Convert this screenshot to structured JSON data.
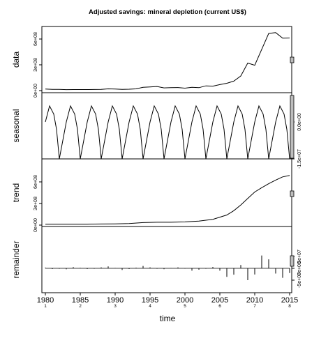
{
  "chart_data": {
    "type": "line",
    "title": "Adjusted savings: mineral depletion (current US$)",
    "xlabel": "time",
    "x_ticks": [
      "1980",
      "1985",
      "1990",
      "1995",
      "2000",
      "2005",
      "2010",
      "2015"
    ],
    "x_ticks_minor": [
      "1",
      "2",
      "3",
      "4",
      "5",
      "6",
      "7",
      "8"
    ],
    "panels": [
      {
        "name": "data",
        "yticks": [
          "0e+00",
          "3e+08",
          "6e+08"
        ],
        "ylim": [
          -15000000.0,
          700000000.0
        ],
        "values": [
          [
            1980,
            18000000.0
          ],
          [
            1981,
            15000000.0
          ],
          [
            1982,
            14000000.0
          ],
          [
            1983,
            11000000.0
          ],
          [
            1984,
            12000000.0
          ],
          [
            1985,
            12000000.0
          ],
          [
            1986,
            12000000.0
          ],
          [
            1987,
            13000000.0
          ],
          [
            1988,
            15000000.0
          ],
          [
            1989,
            20000000.0
          ],
          [
            1990,
            18000000.0
          ],
          [
            1991,
            15000000.0
          ],
          [
            1992,
            16000000.0
          ],
          [
            1993,
            20000000.0
          ],
          [
            1994,
            38000000.0
          ],
          [
            1995,
            42000000.0
          ],
          [
            1996,
            48000000.0
          ],
          [
            1997,
            32000000.0
          ],
          [
            1998,
            34000000.0
          ],
          [
            1999,
            36000000.0
          ],
          [
            2000,
            28000000.0
          ],
          [
            2001,
            38000000.0
          ],
          [
            2002,
            34000000.0
          ],
          [
            2003,
            55000000.0
          ],
          [
            2004,
            52000000.0
          ],
          [
            2005,
            70000000.0
          ],
          [
            2006,
            85000000.0
          ],
          [
            2007,
            110000000.0
          ],
          [
            2008,
            170000000.0
          ],
          [
            2009,
            320000000.0
          ],
          [
            2010,
            295000000.0
          ],
          [
            2011,
            480000000.0
          ],
          [
            2012,
            665000000.0
          ],
          [
            2013,
            675000000.0
          ],
          [
            2014,
            610000000.0
          ],
          [
            2015,
            612000000.0
          ]
        ]
      },
      {
        "name": "seasonal",
        "yticks": [
          "-1.5e+07",
          "0.0e+00"
        ],
        "ylim": [
          -15500000.0,
          6500000.0
        ],
        "values": [
          [
            1980.0,
            0.0
          ],
          [
            1980.6,
            6500000.0
          ],
          [
            1981.2,
            3200000.0
          ],
          [
            1981.6,
            -3000000.0
          ],
          [
            1982.0,
            -15000000.0
          ],
          [
            1983.0,
            0.0
          ],
          [
            1983.6,
            6500000.0
          ],
          [
            1984.2,
            3200000.0
          ],
          [
            1984.6,
            -3000000.0
          ],
          [
            1985.0,
            -15000000.0
          ],
          [
            1986.0,
            0.0
          ],
          [
            1986.6,
            6500000.0
          ],
          [
            1987.2,
            3200000.0
          ],
          [
            1987.6,
            -3000000.0
          ],
          [
            1988.0,
            -15000000.0
          ],
          [
            1989.0,
            0.0
          ],
          [
            1989.6,
            6500000.0
          ],
          [
            1990.2,
            3200000.0
          ],
          [
            1990.6,
            -3000000.0
          ],
          [
            1991.0,
            -15000000.0
          ],
          [
            1992.0,
            0.0
          ],
          [
            1992.6,
            6500000.0
          ],
          [
            1993.2,
            3200000.0
          ],
          [
            1993.6,
            -3000000.0
          ],
          [
            1994.0,
            -15000000.0
          ],
          [
            1995.0,
            0.0
          ],
          [
            1995.6,
            6500000.0
          ],
          [
            1996.2,
            3200000.0
          ],
          [
            1996.6,
            -3000000.0
          ],
          [
            1997.0,
            -15000000.0
          ],
          [
            1998.0,
            0.0
          ],
          [
            1998.6,
            6500000.0
          ],
          [
            1999.2,
            3200000.0
          ],
          [
            1999.6,
            -3000000.0
          ],
          [
            2000.0,
            -15000000.0
          ],
          [
            2001.0,
            0.0
          ],
          [
            2001.6,
            6500000.0
          ],
          [
            2002.2,
            3200000.0
          ],
          [
            2002.6,
            -3000000.0
          ],
          [
            2003.0,
            -15000000.0
          ],
          [
            2004.0,
            0.0
          ],
          [
            2004.6,
            6500000.0
          ],
          [
            2005.2,
            3200000.0
          ],
          [
            2005.6,
            -3000000.0
          ],
          [
            2006.0,
            -15000000.0
          ],
          [
            2007.0,
            0.0
          ],
          [
            2007.6,
            6500000.0
          ],
          [
            2008.2,
            3200000.0
          ],
          [
            2008.6,
            -3000000.0
          ],
          [
            2009.0,
            -15000000.0
          ],
          [
            2010.0,
            0.0
          ],
          [
            2010.6,
            6500000.0
          ],
          [
            2011.2,
            3200000.0
          ],
          [
            2011.6,
            -3000000.0
          ],
          [
            2012.0,
            -15000000.0
          ],
          [
            2013.0,
            0.0
          ],
          [
            2013.6,
            6500000.0
          ],
          [
            2014.2,
            3200000.0
          ],
          [
            2014.6,
            -3000000.0
          ],
          [
            2015.0,
            -15000000.0
          ]
        ]
      },
      {
        "name": "trend",
        "yticks": [
          "0e+00",
          "3e+08",
          "6e+08"
        ],
        "ylim": [
          -15000000.0,
          700000000.0
        ],
        "values": [
          [
            1980,
            12000000.0
          ],
          [
            1982,
            12000000.0
          ],
          [
            1984,
            12000000.0
          ],
          [
            1986,
            13000000.0
          ],
          [
            1988,
            15000000.0
          ],
          [
            1990,
            17000000.0
          ],
          [
            1992,
            22000000.0
          ],
          [
            1994,
            35000000.0
          ],
          [
            1996,
            40000000.0
          ],
          [
            1998,
            40000000.0
          ],
          [
            2000,
            45000000.0
          ],
          [
            2002,
            55000000.0
          ],
          [
            2004,
            80000000.0
          ],
          [
            2006,
            140000000.0
          ],
          [
            2007,
            200000000.0
          ],
          [
            2008,
            280000000.0
          ],
          [
            2009,
            370000000.0
          ],
          [
            2010,
            460000000.0
          ],
          [
            2011,
            520000000.0
          ],
          [
            2012,
            575000000.0
          ],
          [
            2013,
            625000000.0
          ],
          [
            2014,
            670000000.0
          ],
          [
            2015,
            690000000.0
          ]
        ]
      },
      {
        "name": "remainder",
        "yticks": [
          "-5e+07",
          "0e+00",
          "5e+07"
        ],
        "ylim": [
          -52000000.0,
          100000000.0
        ],
        "baseline": 0,
        "values": [
          [
            1980,
            3000000.0
          ],
          [
            1981,
            -3000000.0
          ],
          [
            1982,
            -2000000.0
          ],
          [
            1983,
            -4000000.0
          ],
          [
            1984,
            5000000.0
          ],
          [
            1985,
            2000000.0
          ],
          [
            1986,
            -3000000.0
          ],
          [
            1987,
            -2000000.0
          ],
          [
            1988,
            4000000.0
          ],
          [
            1989,
            8000000.0
          ],
          [
            1990,
            1500000.0
          ],
          [
            1991,
            -7000000.0
          ],
          [
            1992,
            -3000000.0
          ],
          [
            1993,
            2500000.0
          ],
          [
            1994,
            10000000.0
          ],
          [
            1995,
            4000000.0
          ],
          [
            1996,
            -2000000.0
          ],
          [
            1997,
            -3500000.0
          ],
          [
            1998,
            1000000.0
          ],
          [
            1999,
            4000000.0
          ],
          [
            2000,
            -1500000.0
          ],
          [
            2001,
            -10000000.0
          ],
          [
            2002,
            -6000000.0
          ],
          [
            2003,
            -2000000.0
          ],
          [
            2004,
            6000000.0
          ],
          [
            2005,
            -10000000.0
          ],
          [
            2006,
            -36000000.0
          ],
          [
            2007,
            -27000000.0
          ],
          [
            2008,
            14000000.0
          ],
          [
            2009,
            -50000000.0
          ],
          [
            2010,
            -26000000.0
          ],
          [
            2011,
            54000000.0
          ],
          [
            2012,
            38000000.0
          ],
          [
            2013,
            -22000000.0
          ],
          [
            2014,
            -40000000.0
          ],
          [
            2015,
            -20000000.0
          ]
        ]
      }
    ],
    "xlim": [
      1979.5,
      2015.3
    ]
  }
}
